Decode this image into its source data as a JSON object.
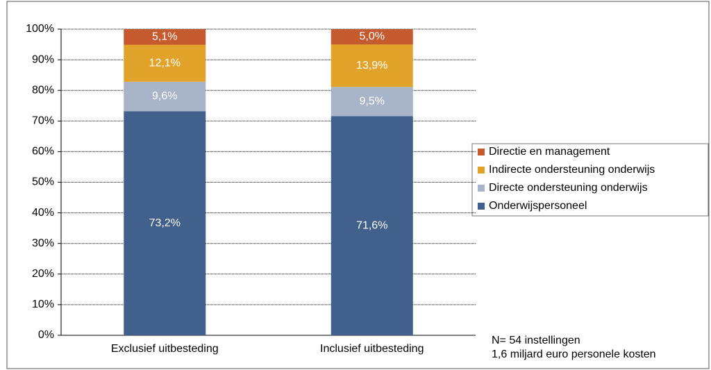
{
  "chart_data": {
    "type": "stacked_bar",
    "categories": [
      "Exclusief uitbesteding",
      "Inclusief uitbesteding"
    ],
    "series": [
      {
        "name": "Onderwijspersoneel",
        "color": "#41608c",
        "values": [
          73.2,
          71.6
        ],
        "value_labels": [
          "73,2%",
          "71,6%"
        ]
      },
      {
        "name": "Directe ondersteuning onderwijs",
        "color": "#a8b4c8",
        "values": [
          9.6,
          9.5
        ],
        "value_labels": [
          "9,6%",
          "9,5%"
        ]
      },
      {
        "name": "Indirecte ondersteuning onderwijs",
        "color": "#e2a32b",
        "values": [
          12.1,
          13.9
        ],
        "value_labels": [
          "12,1%",
          "13,9%"
        ]
      },
      {
        "name": "Directie en management",
        "color": "#c55a2e",
        "values": [
          5.1,
          5.0
        ],
        "value_labels": [
          "5,1%",
          "5,0%"
        ]
      }
    ],
    "ylim": [
      0,
      100
    ],
    "yticks": [
      {
        "value": 0,
        "label": "0%"
      },
      {
        "value": 10,
        "label": "10%"
      },
      {
        "value": 20,
        "label": "20%"
      },
      {
        "value": 30,
        "label": "30%"
      },
      {
        "value": 40,
        "label": "40%"
      },
      {
        "value": 50,
        "label": "50%"
      },
      {
        "value": 60,
        "label": "60%"
      },
      {
        "value": 70,
        "label": "70%"
      },
      {
        "value": 80,
        "label": "80%"
      },
      {
        "value": 90,
        "label": "90%"
      },
      {
        "value": 100,
        "label": "100%"
      }
    ],
    "grid": true,
    "legend": "right",
    "annotations": [
      "N= 54 instellingen",
      "1,6 miljard euro personele kosten"
    ]
  }
}
